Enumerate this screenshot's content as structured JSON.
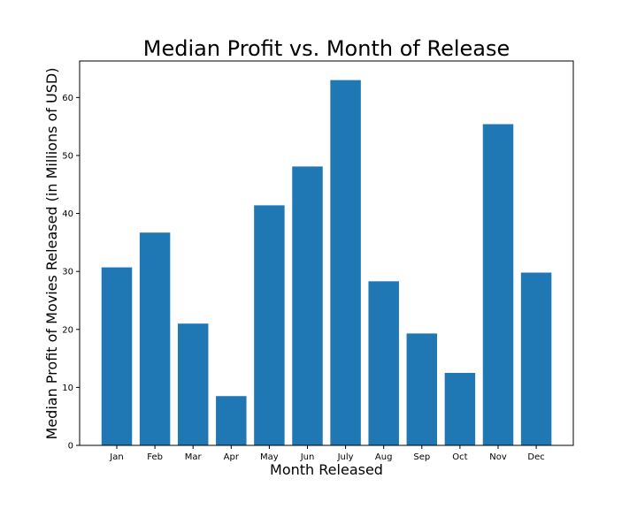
{
  "chart_data": {
    "type": "bar",
    "title": "Median Profit vs. Month of Release",
    "xlabel": "Month Released",
    "ylabel": "Median Profit of Movies Released (in Millions of USD)",
    "categories": [
      "Jan",
      "Feb",
      "Mar",
      "Apr",
      "May",
      "Jun",
      "July",
      "Aug",
      "Sep",
      "Oct",
      "Nov",
      "Dec"
    ],
    "values": [
      30.7,
      36.7,
      21.0,
      8.5,
      41.4,
      48.1,
      63.0,
      28.3,
      19.3,
      12.5,
      55.4,
      29.8
    ],
    "ylim": [
      0,
      66.3
    ],
    "yticks": [
      0,
      10,
      20,
      30,
      40,
      50,
      60
    ],
    "grid": false,
    "colors": {
      "bar": "#1f77b4"
    }
  }
}
